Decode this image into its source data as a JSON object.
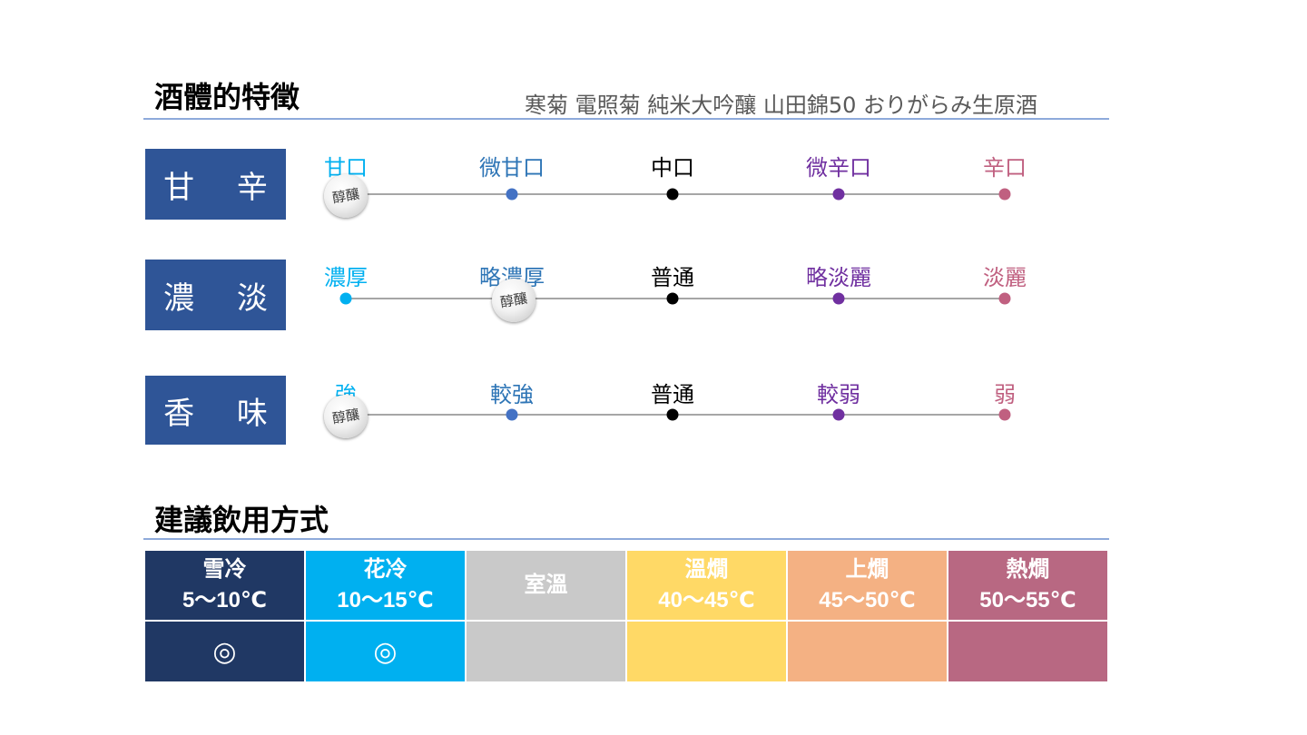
{
  "profile": {
    "title": "酒體的特徵",
    "product_name": "寒菊 電照菊 純米大吟釀 山田錦50 おりがらみ生原酒",
    "marker_text": "醇釀",
    "rows": [
      {
        "label": "甘 辛",
        "ticks": [
          "甘口",
          "微甘口",
          "中口",
          "微辛口",
          "辛口"
        ]
      },
      {
        "label": "濃 淡",
        "ticks": [
          "濃厚",
          "略濃厚",
          "普通",
          "略淡麗",
          "淡麗"
        ]
      },
      {
        "label": "香 味",
        "ticks": [
          "強",
          "較強",
          "普通",
          "較弱",
          "弱"
        ]
      }
    ],
    "tick_colors": [
      "#00b0f0",
      "#4472c4",
      "#000000",
      "#7030a0",
      "#c06080"
    ],
    "label_colors": [
      "#00b0f0",
      "#2e75b6",
      "#000000",
      "#7030a0",
      "#c06080"
    ]
  },
  "serving": {
    "title": "建議飲用方式",
    "columns": [
      {
        "name": "雪冷",
        "range": "5～10℃",
        "mark": "◎",
        "color": "#203864"
      },
      {
        "name": "花冷",
        "range": "10～15℃",
        "mark": "◎",
        "color": "#00b0f0"
      },
      {
        "name": "室溫",
        "range": "",
        "mark": "",
        "color": "#c9c9c9"
      },
      {
        "name": "溫燗",
        "range": "40～45℃",
        "mark": "",
        "color": "#ffd966"
      },
      {
        "name": "上燗",
        "range": "45～50℃",
        "mark": "",
        "color": "#f4b183"
      },
      {
        "name": "熱燗",
        "range": "50～55℃",
        "mark": "",
        "color": "#b86882"
      }
    ]
  }
}
